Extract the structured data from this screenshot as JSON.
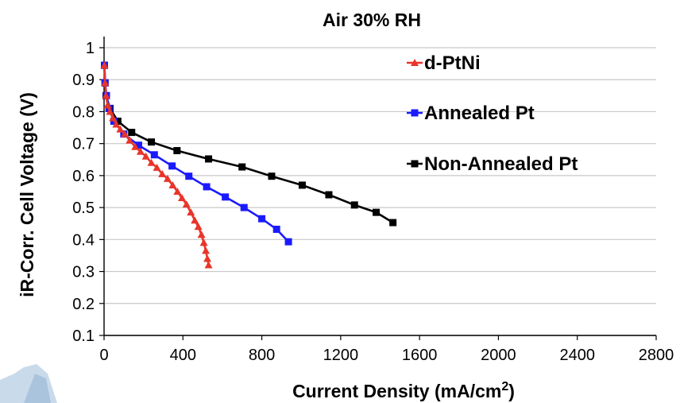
{
  "chart_data": {
    "type": "line",
    "title": "Air 30% RH",
    "xlabel": "Current Density (mA/cm",
    "xlabel_sup": "2",
    "xlabel_close": ")",
    "ylabel": "iR-Corr. Cell Voltage (V)",
    "xlim": [
      0,
      2800
    ],
    "ylim": [
      0.1,
      1.0
    ],
    "xticks": [
      0,
      400,
      800,
      1200,
      1600,
      2000,
      2400,
      2800
    ],
    "yticks": [
      0.1,
      0.2,
      0.3,
      0.4,
      0.5,
      0.6,
      0.7,
      0.8,
      0.9,
      1.0
    ],
    "xtick_labels": [
      "0",
      "400",
      "800",
      "1200",
      "1600",
      "2000",
      "2400",
      "2800"
    ],
    "ytick_labels": [
      "0.1",
      "0.2",
      "0.3",
      "0.4",
      "0.5",
      "0.6",
      "0.7",
      "0.8",
      "0.9",
      "1"
    ],
    "grid": "horizontal",
    "legend_position": "top-right",
    "series": [
      {
        "name": "d-PtNi",
        "color": "#e8352a",
        "marker": "triangle",
        "x": [
          2,
          5,
          10,
          18,
          30,
          45,
          62,
          82,
          105,
          130,
          158,
          185,
          212,
          240,
          268,
          295,
          322,
          348,
          372,
          395,
          418,
          440,
          460,
          478,
          494,
          506,
          516,
          524,
          530
        ],
        "y": [
          0.945,
          0.89,
          0.85,
          0.82,
          0.8,
          0.78,
          0.76,
          0.745,
          0.73,
          0.71,
          0.69,
          0.675,
          0.66,
          0.64,
          0.625,
          0.605,
          0.59,
          0.57,
          0.55,
          0.53,
          0.51,
          0.485,
          0.46,
          0.44,
          0.415,
          0.39,
          0.365,
          0.34,
          0.32
        ]
      },
      {
        "name": "Annealed Pt",
        "color": "#1a1aff",
        "marker": "square",
        "x": [
          2,
          5,
          12,
          25,
          50,
          100,
          175,
          255,
          345,
          430,
          520,
          615,
          710,
          800,
          875,
          935
        ],
        "y": [
          0.945,
          0.89,
          0.85,
          0.81,
          0.77,
          0.73,
          0.695,
          0.665,
          0.63,
          0.598,
          0.565,
          0.533,
          0.5,
          0.465,
          0.432,
          0.393
        ]
      },
      {
        "name": "Non-Annealed Pt",
        "color": "#000000",
        "marker": "square",
        "x": [
          2,
          5,
          10,
          30,
          70,
          140,
          240,
          370,
          530,
          700,
          850,
          1005,
          1140,
          1270,
          1380,
          1465
        ],
        "y": [
          0.945,
          0.89,
          0.85,
          0.81,
          0.77,
          0.735,
          0.705,
          0.678,
          0.652,
          0.627,
          0.598,
          0.57,
          0.54,
          0.508,
          0.485,
          0.453
        ]
      }
    ]
  }
}
